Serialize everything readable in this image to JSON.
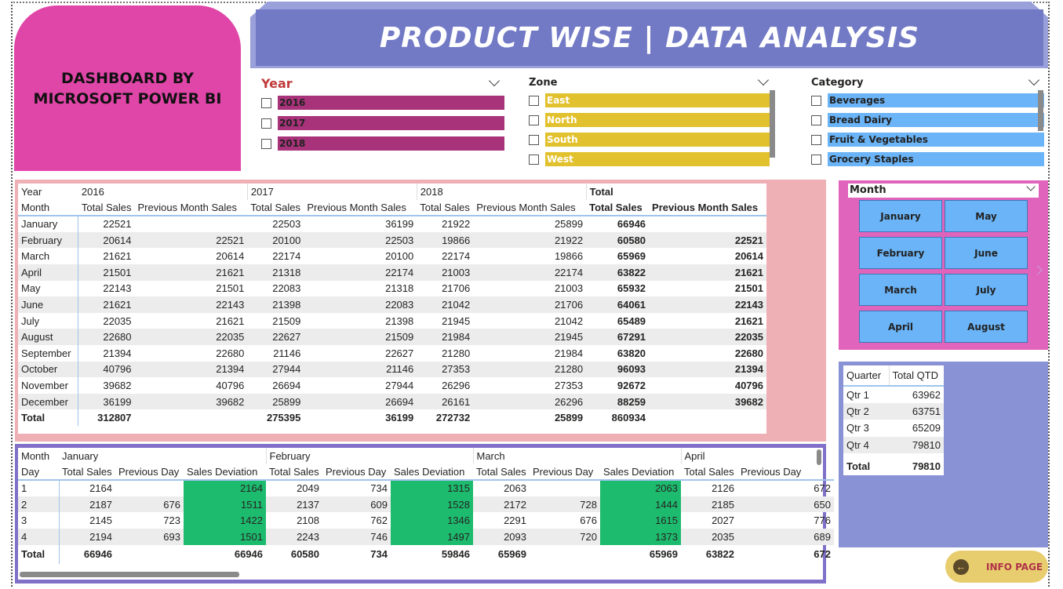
{
  "header": {
    "badge_text": "DASHBOARD BY\nMICROSOFT POWER BI",
    "title": "PRODUCT WISE | DATA ANALYSIS"
  },
  "slicers": {
    "year": {
      "title": "Year",
      "items": [
        "2016",
        "2017",
        "2018"
      ]
    },
    "zone": {
      "title": "Zone",
      "items": [
        "East",
        "North",
        "South",
        "West"
      ]
    },
    "category": {
      "title": "Category",
      "items": [
        "Beverages",
        "Bread Dairy",
        "Fruit & Vegetables",
        "Grocery Staples"
      ]
    }
  },
  "main_table": {
    "col_year_label": "Year",
    "col_month_label": "Month",
    "years": [
      "2016",
      "2017",
      "2018",
      "Total"
    ],
    "sub_headers": [
      "Total Sales",
      "Previous Month Sales"
    ],
    "rows": [
      [
        "January",
        "22521",
        "",
        "22503",
        "36199",
        "21922",
        "25899",
        "66946",
        ""
      ],
      [
        "February",
        "20614",
        "22521",
        "20100",
        "22503",
        "19866",
        "21922",
        "60580",
        "22521"
      ],
      [
        "March",
        "21621",
        "20614",
        "22174",
        "20100",
        "22174",
        "19866",
        "65969",
        "20614"
      ],
      [
        "April",
        "21501",
        "21621",
        "21318",
        "22174",
        "21003",
        "22174",
        "63822",
        "21621"
      ],
      [
        "May",
        "22143",
        "21501",
        "22083",
        "21318",
        "21706",
        "21003",
        "65932",
        "21501"
      ],
      [
        "June",
        "21621",
        "22143",
        "21398",
        "22083",
        "21042",
        "21706",
        "64061",
        "22143"
      ],
      [
        "July",
        "22035",
        "21621",
        "21509",
        "21398",
        "21945",
        "21042",
        "65489",
        "21621"
      ],
      [
        "August",
        "22680",
        "22035",
        "22627",
        "21509",
        "21984",
        "21945",
        "67291",
        "22035"
      ],
      [
        "September",
        "21394",
        "22680",
        "21146",
        "22627",
        "21280",
        "21984",
        "63820",
        "22680"
      ],
      [
        "October",
        "40796",
        "21394",
        "27944",
        "21146",
        "27353",
        "21280",
        "96093",
        "21394"
      ],
      [
        "November",
        "39682",
        "40796",
        "26694",
        "27944",
        "26296",
        "27353",
        "92672",
        "40796"
      ],
      [
        "December",
        "36199",
        "39682",
        "25899",
        "26694",
        "26161",
        "26296",
        "88259",
        "39682"
      ]
    ],
    "total_row": [
      "Total",
      "312807",
      "",
      "275395",
      "36199",
      "272732",
      "25899",
      "860934",
      ""
    ]
  },
  "day_table": {
    "col_month_label": "Month",
    "col_day_label": "Day",
    "months": [
      "January",
      "February",
      "March",
      "April"
    ],
    "sub_headers": [
      "Total Sales",
      "Previous Day",
      "Sales Deviation"
    ],
    "rows": [
      [
        "1",
        "2164",
        "",
        "2164",
        "2049",
        "734",
        "1315",
        "2063",
        "",
        "2063",
        "2126",
        "672"
      ],
      [
        "2",
        "2187",
        "676",
        "1511",
        "2137",
        "609",
        "1528",
        "2172",
        "728",
        "1444",
        "2185",
        "650"
      ],
      [
        "3",
        "2145",
        "723",
        "1422",
        "2108",
        "762",
        "1346",
        "2291",
        "676",
        "1615",
        "2027",
        "776"
      ],
      [
        "4",
        "2194",
        "693",
        "1501",
        "2243",
        "746",
        "1497",
        "2093",
        "720",
        "1373",
        "2035",
        "689"
      ]
    ],
    "total_row": [
      "Total",
      "66946",
      "",
      "66946",
      "60580",
      "734",
      "59846",
      "65969",
      "",
      "65969",
      "63822",
      "672"
    ]
  },
  "month_slicer": {
    "title": "Month",
    "buttons": [
      "January",
      "May",
      "February",
      "June",
      "March",
      "July",
      "April",
      "August"
    ]
  },
  "quarter_table": {
    "headers": [
      "Quarter",
      "Total QTD"
    ],
    "rows": [
      [
        "Qtr 1",
        "63962"
      ],
      [
        "Qtr 2",
        "63751"
      ],
      [
        "Qtr 3",
        "65209"
      ],
      [
        "Qtr 4",
        "79810"
      ]
    ],
    "total_row": [
      "Total",
      "79810"
    ]
  },
  "info_button": {
    "label": "INFO PAGE",
    "icon": "back-arrow-icon"
  },
  "colors": {
    "pink": "#e045a8",
    "banner": "#727ac6",
    "year_bar": "#a8337a",
    "zone_bar": "#e2c12e",
    "category_bar": "#6ab4f7",
    "deviation_green": "#1dbb6e"
  }
}
